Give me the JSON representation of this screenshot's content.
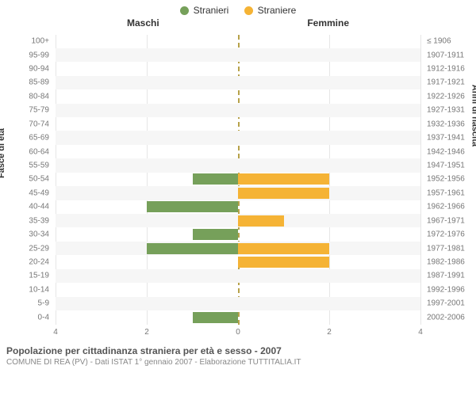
{
  "chart": {
    "type": "population-pyramid",
    "background_color": "#ffffff",
    "row_alt_color": "#f6f6f6",
    "grid_color": "#e6e6e6",
    "center_line_color": "#b7a24a",
    "label_color": "#777777",
    "header_color": "#333333",
    "legend": {
      "items": [
        {
          "label": "Stranieri",
          "color": "#76a05a"
        },
        {
          "label": "Straniere",
          "color": "#f5b335"
        }
      ]
    },
    "column_titles": {
      "left": "Maschi",
      "right": "Femmine"
    },
    "y_axis_left_title": "Fasce di età",
    "y_axis_right_title": "Anni di nascita",
    "x_axis": {
      "max": 4,
      "ticks": [
        4,
        2,
        0,
        2,
        4
      ]
    },
    "left_color": "#76a05a",
    "right_color": "#f5b335",
    "rows": [
      {
        "age": "100+",
        "birth": "≤ 1906",
        "m": 0,
        "f": 0
      },
      {
        "age": "95-99",
        "birth": "1907-1911",
        "m": 0,
        "f": 0
      },
      {
        "age": "90-94",
        "birth": "1912-1916",
        "m": 0,
        "f": 0
      },
      {
        "age": "85-89",
        "birth": "1917-1921",
        "m": 0,
        "f": 0
      },
      {
        "age": "80-84",
        "birth": "1922-1926",
        "m": 0,
        "f": 0
      },
      {
        "age": "75-79",
        "birth": "1927-1931",
        "m": 0,
        "f": 0
      },
      {
        "age": "70-74",
        "birth": "1932-1936",
        "m": 0,
        "f": 0
      },
      {
        "age": "65-69",
        "birth": "1937-1941",
        "m": 0,
        "f": 0
      },
      {
        "age": "60-64",
        "birth": "1942-1946",
        "m": 0,
        "f": 0
      },
      {
        "age": "55-59",
        "birth": "1947-1951",
        "m": 0,
        "f": 0
      },
      {
        "age": "50-54",
        "birth": "1952-1956",
        "m": 1,
        "f": 2
      },
      {
        "age": "45-49",
        "birth": "1957-1961",
        "m": 0,
        "f": 2
      },
      {
        "age": "40-44",
        "birth": "1962-1966",
        "m": 2,
        "f": 0
      },
      {
        "age": "35-39",
        "birth": "1967-1971",
        "m": 0,
        "f": 1
      },
      {
        "age": "30-34",
        "birth": "1972-1976",
        "m": 1,
        "f": 0
      },
      {
        "age": "25-29",
        "birth": "1977-1981",
        "m": 2,
        "f": 2
      },
      {
        "age": "20-24",
        "birth": "1982-1986",
        "m": 0,
        "f": 2
      },
      {
        "age": "15-19",
        "birth": "1987-1991",
        "m": 0,
        "f": 0
      },
      {
        "age": "10-14",
        "birth": "1992-1996",
        "m": 0,
        "f": 0
      },
      {
        "age": "5-9",
        "birth": "1997-2001",
        "m": 0,
        "f": 0
      },
      {
        "age": "0-4",
        "birth": "2002-2006",
        "m": 1,
        "f": 0
      }
    ]
  },
  "footer": {
    "title": "Popolazione per cittadinanza straniera per età e sesso - 2007",
    "subtitle": "COMUNE DI REA (PV) - Dati ISTAT 1° gennaio 2007 - Elaborazione TUTTITALIA.IT"
  }
}
